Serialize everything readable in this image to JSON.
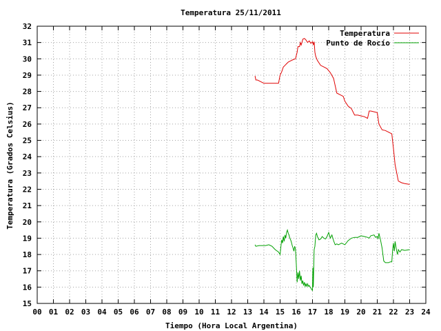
{
  "chart_data": {
    "type": "line",
    "title": "Temperatura 25/11/2011",
    "xlabel": "Tiempo (Hora Local Argentina)",
    "ylabel": "Temperatura (Grados Celsius)",
    "xlim": [
      0,
      24
    ],
    "ylim": [
      15,
      32
    ],
    "x_tick_labels": [
      "00",
      "01",
      "02",
      "03",
      "04",
      "05",
      "06",
      "07",
      "08",
      "09",
      "10",
      "11",
      "12",
      "13",
      "14",
      "15",
      "16",
      "17",
      "18",
      "19",
      "20",
      "21",
      "22",
      "23",
      "24"
    ],
    "y_tick_labels": [
      "15",
      "16",
      "17",
      "18",
      "19",
      "20",
      "21",
      "22",
      "23",
      "24",
      "25",
      "26",
      "27",
      "28",
      "29",
      "30",
      "31",
      "32"
    ],
    "grid": true,
    "legend_position": "top-right",
    "series": [
      {
        "name": "Temperatura",
        "color": "#e00000",
        "x": [
          13.45,
          13.5,
          13.6,
          13.7,
          13.8,
          13.9,
          14.0,
          14.3,
          14.6,
          14.9,
          15.0,
          15.1,
          15.2,
          15.3,
          15.4,
          15.5,
          15.6,
          15.7,
          15.8,
          15.95,
          16.05,
          16.1,
          16.2,
          16.25,
          16.3,
          16.35,
          16.4,
          16.5,
          16.6,
          16.7,
          16.8,
          16.9,
          17.0,
          17.05,
          17.1,
          17.15,
          17.2,
          17.3,
          17.5,
          17.7,
          17.9,
          18.1,
          18.3,
          18.5,
          18.7,
          18.9,
          19.0,
          19.2,
          19.4,
          19.6,
          19.8,
          20.0,
          20.2,
          20.4,
          20.5,
          20.6,
          20.8,
          21.0,
          21.1,
          21.3,
          21.5,
          21.7,
          21.9,
          22.0,
          22.1,
          22.3,
          22.5,
          22.7,
          23.0
        ],
        "y": [
          28.95,
          28.7,
          28.7,
          28.65,
          28.6,
          28.55,
          28.5,
          28.5,
          28.5,
          28.5,
          29.0,
          29.2,
          29.5,
          29.6,
          29.7,
          29.8,
          29.85,
          29.9,
          29.95,
          30.0,
          30.4,
          30.75,
          30.75,
          31.0,
          30.85,
          31.0,
          31.2,
          31.25,
          31.15,
          31.0,
          31.1,
          30.95,
          31.05,
          30.85,
          31.05,
          30.4,
          30.15,
          29.9,
          29.6,
          29.5,
          29.4,
          29.15,
          28.8,
          27.9,
          27.8,
          27.7,
          27.4,
          27.1,
          26.95,
          26.55,
          26.55,
          26.5,
          26.45,
          26.35,
          26.8,
          26.8,
          26.75,
          26.7,
          26.0,
          25.65,
          25.6,
          25.5,
          25.4,
          24.5,
          23.5,
          22.5,
          22.4,
          22.35,
          22.3
        ]
      },
      {
        "name": "Punto de Rocío",
        "color": "#00a000",
        "x": [
          13.45,
          13.5,
          13.7,
          13.9,
          14.1,
          14.3,
          14.5,
          14.7,
          14.9,
          15.0,
          15.05,
          15.1,
          15.15,
          15.2,
          15.25,
          15.3,
          15.35,
          15.4,
          15.45,
          15.5,
          15.55,
          15.6,
          15.65,
          15.7,
          15.75,
          15.8,
          15.85,
          15.9,
          15.95,
          16.0,
          16.05,
          16.1,
          16.15,
          16.2,
          16.25,
          16.3,
          16.35,
          16.4,
          16.45,
          16.5,
          16.55,
          16.6,
          16.65,
          16.7,
          16.75,
          16.8,
          16.85,
          16.9,
          16.95,
          17.0,
          17.02,
          17.05,
          17.1,
          17.15,
          17.2,
          17.25,
          17.3,
          17.4,
          17.5,
          17.6,
          17.7,
          17.8,
          17.9,
          18.0,
          18.1,
          18.2,
          18.3,
          18.4,
          18.5,
          18.6,
          18.8,
          19.0,
          19.2,
          19.4,
          19.6,
          19.8,
          20.0,
          20.2,
          20.4,
          20.5,
          20.6,
          20.8,
          20.9,
          21.0,
          21.05,
          21.1,
          21.2,
          21.3,
          21.4,
          21.5,
          21.6,
          21.7,
          21.8,
          21.9,
          21.95,
          22.0,
          22.05,
          22.1,
          22.15,
          22.2,
          22.25,
          22.3,
          22.4,
          22.5,
          22.7,
          23.0
        ],
        "y": [
          18.6,
          18.5,
          18.55,
          18.55,
          18.55,
          18.6,
          18.5,
          18.3,
          18.15,
          18.0,
          18.5,
          18.9,
          18.7,
          19.1,
          18.8,
          19.2,
          19.0,
          19.35,
          19.5,
          19.3,
          19.2,
          19.0,
          18.9,
          18.75,
          18.55,
          18.4,
          18.2,
          18.5,
          18.35,
          17.4,
          16.3,
          16.9,
          16.5,
          17.0,
          16.4,
          16.7,
          16.2,
          16.4,
          16.1,
          16.3,
          16.05,
          16.2,
          16.05,
          16.2,
          16.05,
          16.1,
          16.0,
          15.95,
          15.85,
          15.8,
          17.2,
          16.0,
          18.3,
          18.5,
          19.2,
          19.3,
          19.1,
          18.9,
          18.95,
          19.1,
          19.0,
          18.95,
          19.1,
          19.35,
          19.0,
          19.2,
          18.85,
          18.6,
          18.65,
          18.6,
          18.7,
          18.6,
          18.85,
          19.0,
          19.05,
          19.05,
          19.15,
          19.1,
          19.05,
          19.0,
          19.15,
          19.2,
          19.05,
          19.1,
          18.95,
          19.3,
          18.9,
          18.4,
          17.6,
          17.5,
          17.5,
          17.5,
          17.55,
          17.55,
          18.3,
          18.7,
          18.2,
          18.8,
          18.5,
          18.2,
          18.0,
          18.3,
          18.15,
          18.3,
          18.25,
          18.3
        ]
      }
    ]
  }
}
